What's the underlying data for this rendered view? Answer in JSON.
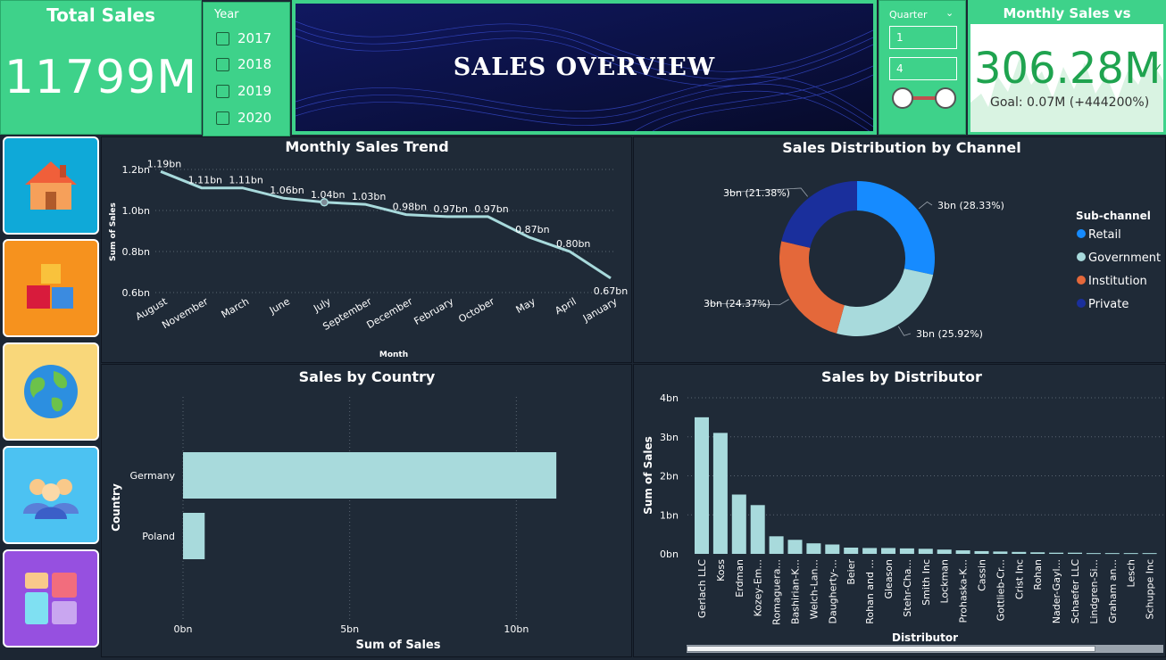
{
  "kpi": {
    "title": "Total Sales",
    "value": "11799M"
  },
  "year_filter": {
    "title": "Year",
    "options": [
      "2017",
      "2018",
      "2019",
      "2020"
    ]
  },
  "banner": {
    "title": "SALES OVERVIEW"
  },
  "quarter_filter": {
    "title": "Quarter",
    "from": "1",
    "to": "4"
  },
  "monthly_avg": {
    "title": "Monthly Sales vs Average",
    "value": "306.28M",
    "goal": "Goal: 0.07M (+444200%)"
  },
  "nav": {
    "items": [
      "home-icon",
      "cubes-icon",
      "globe-icon",
      "users-icon",
      "tiles-icon"
    ]
  },
  "colors": {
    "teal": "#a8dadc",
    "green": "#3ed28a",
    "retail": "#168bff",
    "government": "#a8dadc",
    "institution": "#e4683a",
    "private": "#1a2f9c"
  },
  "chart_data": [
    {
      "type": "line",
      "title": "Monthly Sales Trend",
      "xlabel": "Month",
      "ylabel": "Sum of Sales",
      "categories": [
        "August",
        "November",
        "March",
        "June",
        "July",
        "September",
        "December",
        "February",
        "October",
        "May",
        "April",
        "January"
      ],
      "values": [
        1.19,
        1.11,
        1.11,
        1.06,
        1.04,
        1.03,
        0.98,
        0.97,
        0.97,
        0.87,
        0.8,
        0.67
      ],
      "labels": [
        "1.19bn",
        "1.11bn",
        "1.11bn",
        "1.06bn",
        "1.04bn",
        "1.03bn",
        "0.98bn",
        "0.97bn",
        "0.97bn",
        "0.87bn",
        "0.80bn",
        "0.67bn"
      ],
      "yticks": [
        "1.2bn",
        "1.0bn",
        "0.8bn",
        "0.6bn"
      ],
      "ytick_values": [
        1.2,
        1.0,
        0.8,
        0.6
      ],
      "ylim": [
        0.6,
        1.2
      ]
    },
    {
      "type": "pie",
      "title": "Sales Distribution by Channel",
      "legend_title": "Sub-channel",
      "categories": [
        "Retail",
        "Government",
        "Institution",
        "Private"
      ],
      "values": [
        28.33,
        25.92,
        24.37,
        21.38
      ],
      "labels": [
        "3bn (28.33%)",
        "3bn (25.92%)",
        "3bn (24.37%)",
        "3bn (21.38%)"
      ]
    },
    {
      "type": "bar",
      "title": "Sales by Country",
      "xlabel": "Sum of Sales",
      "ylabel": "Country",
      "categories": [
        "Germany",
        "Poland"
      ],
      "values": [
        11.2,
        0.65
      ],
      "xticks": [
        "0bn",
        "5bn",
        "10bn"
      ],
      "xtick_values": [
        0,
        5,
        10
      ],
      "xlim": [
        0,
        12
      ]
    },
    {
      "type": "bar",
      "title": "Sales by Distributor",
      "xlabel": "Distributor",
      "ylabel": "Sum of Sales",
      "categories": [
        "Gerlach LLC",
        "Koss",
        "Erdman",
        "Kozey-Em...",
        "Romaguera...",
        "Bashirian-K...",
        "Welch-Lan...",
        "Daugherty-...",
        "Beier",
        "Rohan and ...",
        "Gleason",
        "Stehr-Cha...",
        "Smith Inc",
        "Lockman",
        "Prohaska-K...",
        "Cassin",
        "Gottlieb-Cr...",
        "Crist Inc",
        "Rohan",
        "Nader-Gayl...",
        "Schaefer LLC",
        "Lindgren-Si...",
        "Graham an...",
        "Lesch",
        "Schuppe Inc"
      ],
      "values": [
        3.5,
        3.1,
        1.52,
        1.25,
        0.45,
        0.36,
        0.27,
        0.24,
        0.16,
        0.15,
        0.15,
        0.14,
        0.13,
        0.11,
        0.09,
        0.07,
        0.06,
        0.05,
        0.04,
        0.03,
        0.03,
        0.02,
        0.02,
        0.02,
        0.02
      ],
      "yticks": [
        "4bn",
        "3bn",
        "2bn",
        "1bn",
        "0bn"
      ],
      "ytick_values": [
        4,
        3,
        2,
        1,
        0
      ],
      "ylim": [
        0,
        4
      ]
    }
  ]
}
